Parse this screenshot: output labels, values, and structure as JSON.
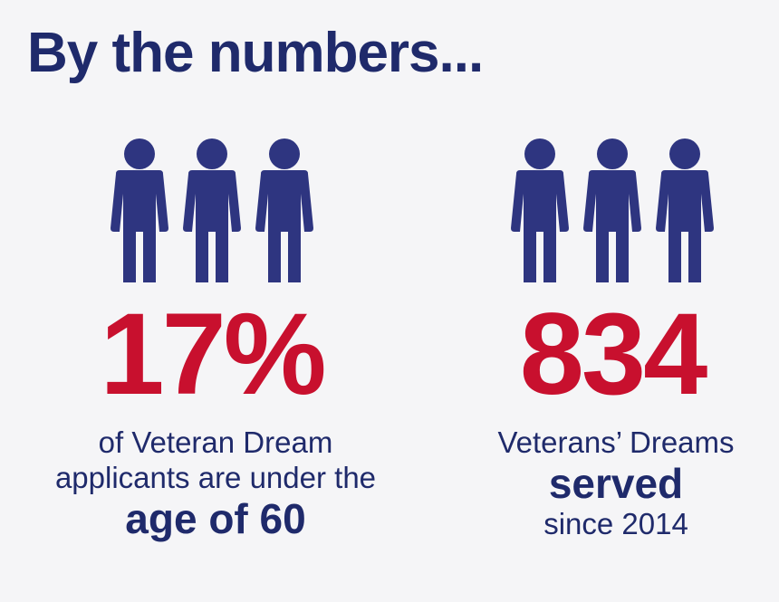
{
  "header": {
    "title": "By the numbers..."
  },
  "colors": {
    "navy": "#1f2a6b",
    "red": "#c8102e",
    "figure": "#2e3580",
    "background": "#f5f5f7"
  },
  "stats": [
    {
      "icon": "people-icon",
      "value": "17%",
      "line1": "of Veteran Dream",
      "line2": "applicants are under the",
      "emphasis": "age of 60"
    },
    {
      "icon": "people-icon",
      "value": "834",
      "line1": "Veterans’ Dreams",
      "emphasis": "served",
      "line2": "since 2014"
    }
  ]
}
